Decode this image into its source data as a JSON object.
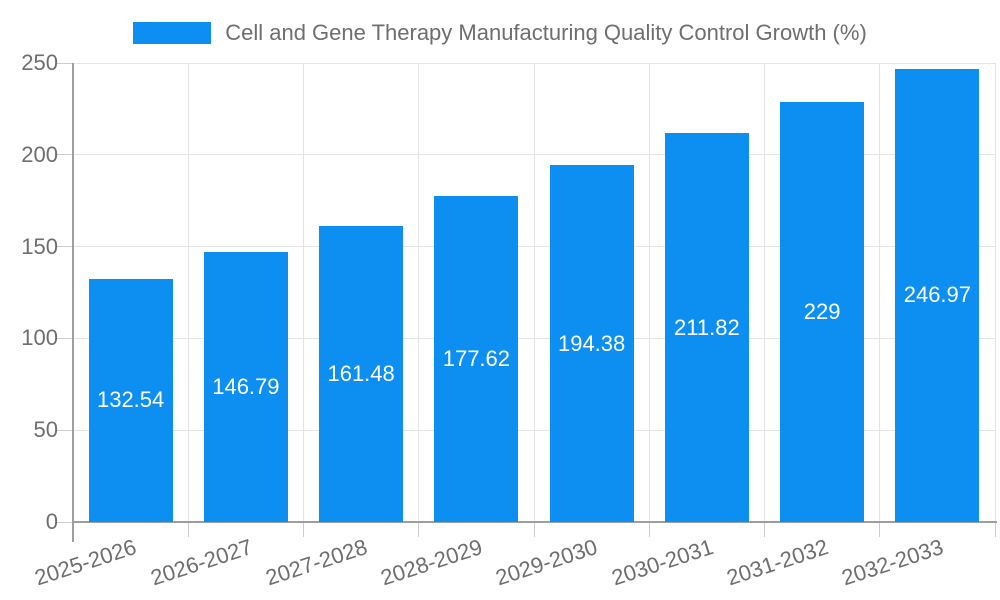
{
  "legend": {
    "label": "Cell and Gene Therapy Manufacturing Quality Control Growth (%)"
  },
  "chart_data": {
    "type": "bar",
    "title": "Cell and Gene Therapy Manufacturing Quality Control Growth (%)",
    "categories": [
      "2025-2026",
      "2026-2027",
      "2027-2028",
      "2028-2029",
      "2029-2030",
      "2030-2031",
      "2031-2032",
      "2032-2033"
    ],
    "values": [
      132.54,
      146.79,
      161.48,
      177.62,
      194.38,
      211.82,
      229,
      246.97
    ],
    "xlabel": "",
    "ylabel": "",
    "ylim": [
      0,
      250
    ],
    "yticks": [
      0,
      50,
      100,
      150,
      200,
      250
    ],
    "grid": true,
    "legend_position": "top-center",
    "value_labels": "inside-center"
  },
  "colors": {
    "bar": "#0d8ff2",
    "value_label_text": "#ffffff",
    "axis_text": "#6e6e6e",
    "grid_line": "#e4e4e4",
    "tick_line": "#cccccc",
    "axis_line": "#9e9e9e",
    "background": "#ffffff"
  }
}
